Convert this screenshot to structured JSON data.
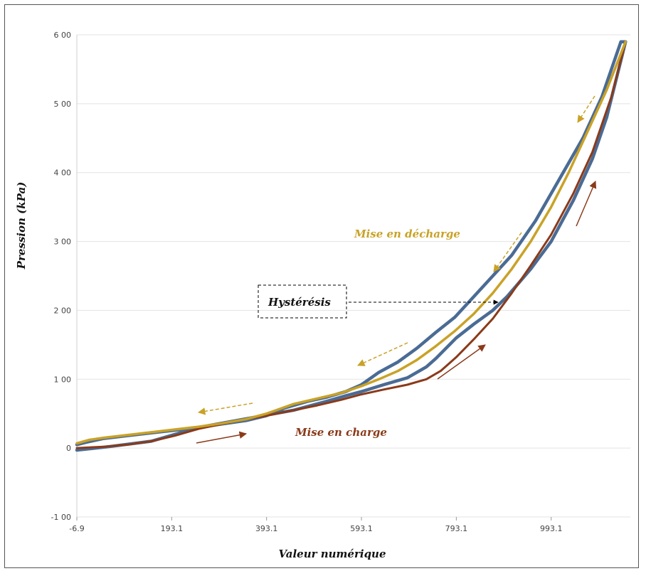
{
  "chart_data": {
    "type": "line",
    "xlabel": "Valeur numérique",
    "ylabel": "Pression (kPa)",
    "xlim": [
      -6.9,
      1160
    ],
    "ylim": [
      -100,
      600
    ],
    "x_ticks": [
      -6.9,
      193.1,
      393.1,
      593.1,
      793.1,
      993.1
    ],
    "x_tick_labels": [
      "-6.9",
      "193.1",
      "393.1",
      "593.1",
      "793.1",
      "993.1"
    ],
    "y_ticks": [
      -100,
      0,
      100,
      200,
      300,
      400,
      500,
      600
    ],
    "y_tick_labels": [
      "-1 00",
      "0",
      "1 00",
      "2 00",
      "3 00",
      "4 00",
      "5 00",
      "6 00"
    ],
    "grid": "horizontal",
    "colors": {
      "measured": "#4a6b94",
      "loading": "#8b3a1a",
      "unloading": "#c9a227"
    },
    "series": [
      {
        "key": "measured",
        "x": [
          -6.9,
          60,
          150,
          250,
          330,
          393,
          450,
          520,
          560,
          593,
          640,
          690,
          730,
          750,
          793,
          830,
          870,
          900,
          950,
          993,
          1040,
          1080,
          1110,
          1150,
          1140,
          1100,
          1060,
          1010,
          960,
          910,
          870,
          830,
          790,
          750,
          710,
          670,
          630,
          593,
          560,
          520,
          480,
          430,
          393,
          350,
          300,
          250,
          200,
          150,
          100,
          50,
          10,
          -6.9
        ],
        "y": [
          -3,
          2,
          10,
          30,
          40,
          48,
          55,
          68,
          76,
          82,
          92,
          102,
          118,
          130,
          160,
          180,
          200,
          220,
          260,
          300,
          360,
          420,
          480,
          590,
          590,
          510,
          450,
          390,
          330,
          280,
          250,
          220,
          190,
          168,
          145,
          125,
          110,
          92,
          82,
          74,
          68,
          58,
          47,
          40,
          35,
          30,
          26,
          22,
          18,
          14,
          8,
          5
        ]
      },
      {
        "key": "loading",
        "x": [
          -6.9,
          50,
          100,
          150,
          200,
          250,
          300,
          350,
          393,
          450,
          500,
          550,
          593,
          640,
          690,
          730,
          760,
          793,
          830,
          870,
          910,
          950,
          993,
          1040,
          1080,
          1120,
          1150
        ],
        "y": [
          0,
          2,
          5,
          10,
          18,
          28,
          35,
          42,
          47,
          55,
          62,
          70,
          78,
          85,
          92,
          100,
          112,
          132,
          158,
          188,
          225,
          265,
          310,
          370,
          430,
          510,
          590
        ]
      },
      {
        "key": "unloading",
        "x": [
          1150,
          1110,
          1070,
          1030,
          993,
          950,
          910,
          870,
          830,
          790,
          750,
          710,
          670,
          630,
          593,
          550,
          500,
          450,
          393,
          350,
          300,
          250,
          200,
          150,
          100,
          50,
          20,
          -6.9
        ],
        "y": [
          590,
          520,
          460,
          400,
          350,
          300,
          260,
          225,
          195,
          170,
          148,
          128,
          112,
          100,
          90,
          80,
          72,
          64,
          50,
          42,
          36,
          31,
          27,
          23,
          19,
          15,
          12,
          7
        ]
      }
    ],
    "annotations": {
      "decharge": "Mise en décharge",
      "charge": "Mise en charge",
      "hysteresis": "Hystérésis"
    }
  }
}
